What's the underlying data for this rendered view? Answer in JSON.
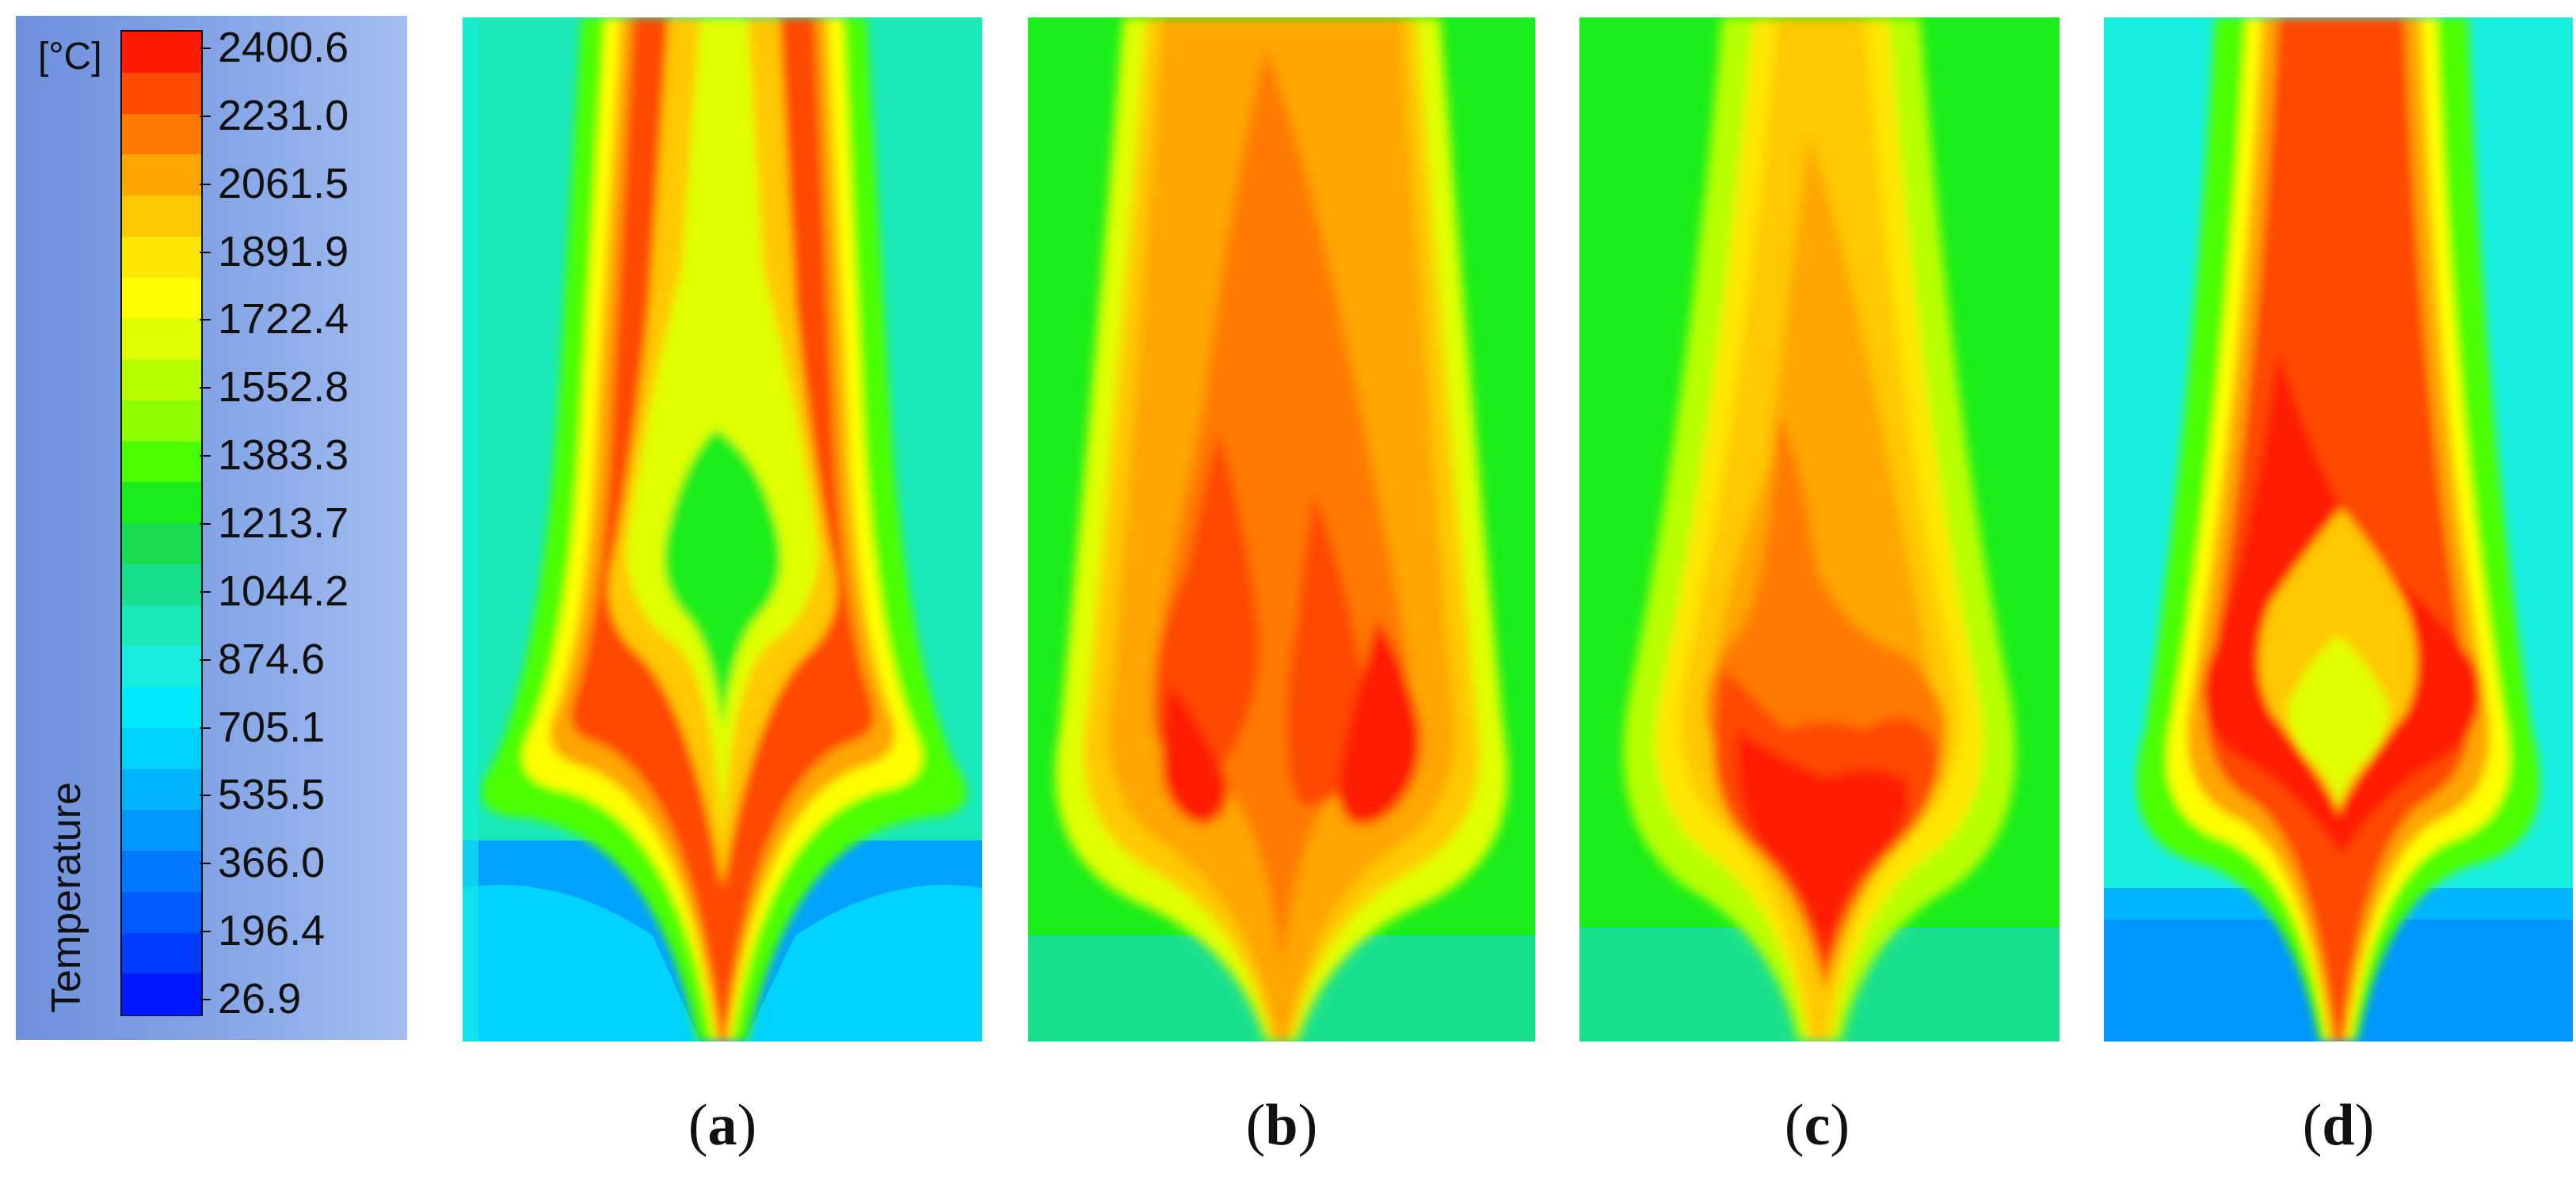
{
  "legend": {
    "title": "Temperature",
    "unit": "[°C]",
    "tick_labels": [
      "2400.6",
      "2231.0",
      "2061.5",
      "1891.9",
      "1722.4",
      "1552.8",
      "1383.3",
      "1213.7",
      "1044.2",
      "874.6",
      "705.1",
      "535.5",
      "366.0",
      "196.4",
      "26.9"
    ],
    "colors": [
      "#ff1a00",
      "#ff4a00",
      "#ff7a00",
      "#ffa500",
      "#ffc800",
      "#ffe600",
      "#fffd00",
      "#e0ff00",
      "#b8ff00",
      "#8cff00",
      "#4cff00",
      "#1aee1a",
      "#18dd52",
      "#18e08c",
      "#18e8b8",
      "#18eee0",
      "#00eaff",
      "#00d2ff",
      "#00b4ff",
      "#0096ff",
      "#0078ff",
      "#005aff",
      "#003cff",
      "#0018ff"
    ]
  },
  "panels": [
    {
      "id": "a",
      "label_open": "(",
      "label_letter": "a",
      "label_close": ")"
    },
    {
      "id": "b",
      "label_open": "(",
      "label_letter": "b",
      "label_close": ")"
    },
    {
      "id": "c",
      "label_open": "(",
      "label_letter": "c",
      "label_close": ")"
    },
    {
      "id": "d",
      "label_open": "(",
      "label_letter": "d",
      "label_close": ")"
    }
  ]
}
